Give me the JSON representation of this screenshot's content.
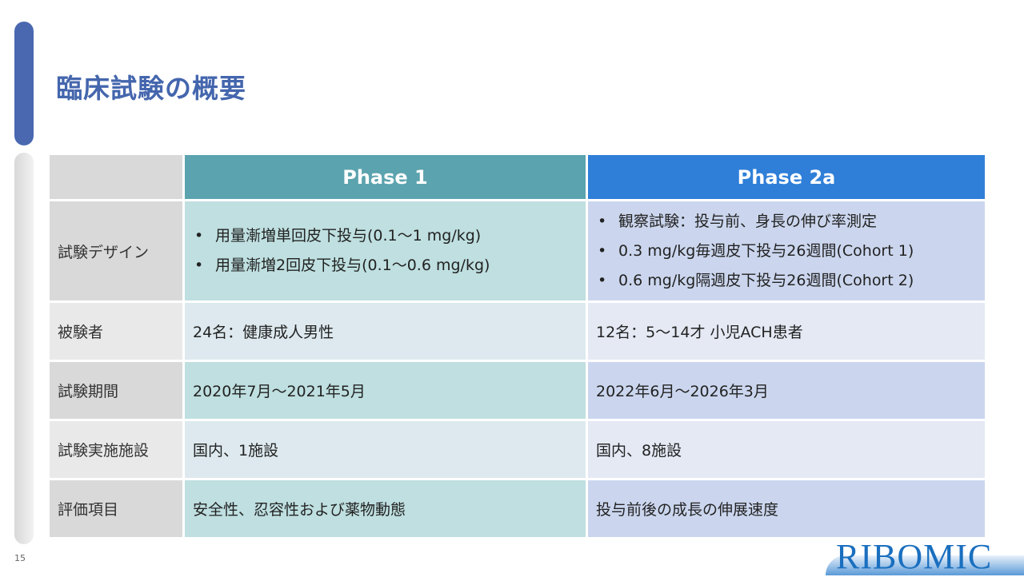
{
  "title": "臨床試験の概要",
  "page_number": "15",
  "logo_text": "RIBOMIC",
  "table": {
    "headers": [
      "",
      "Phase 1",
      "Phase 2a"
    ],
    "rows": [
      {
        "label": "試験デザイン",
        "phase1": [
          "用量漸増単回皮下投与(0.1～1 mg/kg)",
          "用量漸増2回皮下投与(0.1～0.6 mg/kg)"
        ],
        "phase2": [
          "観察試験：投与前、身長の伸び率測定",
          "0.3 mg/kg毎週皮下投与26週間(Cohort 1)",
          "0.6 mg/kg隔週皮下投与26週間(Cohort 2)"
        ]
      },
      {
        "label": "被験者",
        "phase1": "24名：健康成人男性",
        "phase2": "12名：5～14才 小児ACH患者"
      },
      {
        "label": "試験期間",
        "phase1": "2020年7月～2021年5月",
        "phase2": "2022年6月～2026年3月"
      },
      {
        "label": "試験実施施設",
        "phase1": "国内、1施設",
        "phase2": "国内、8施設"
      },
      {
        "label": "評価項目",
        "phase1": "安全性、忍容性および薬物動態",
        "phase2": "投与前後の成長の伸展速度"
      }
    ]
  }
}
